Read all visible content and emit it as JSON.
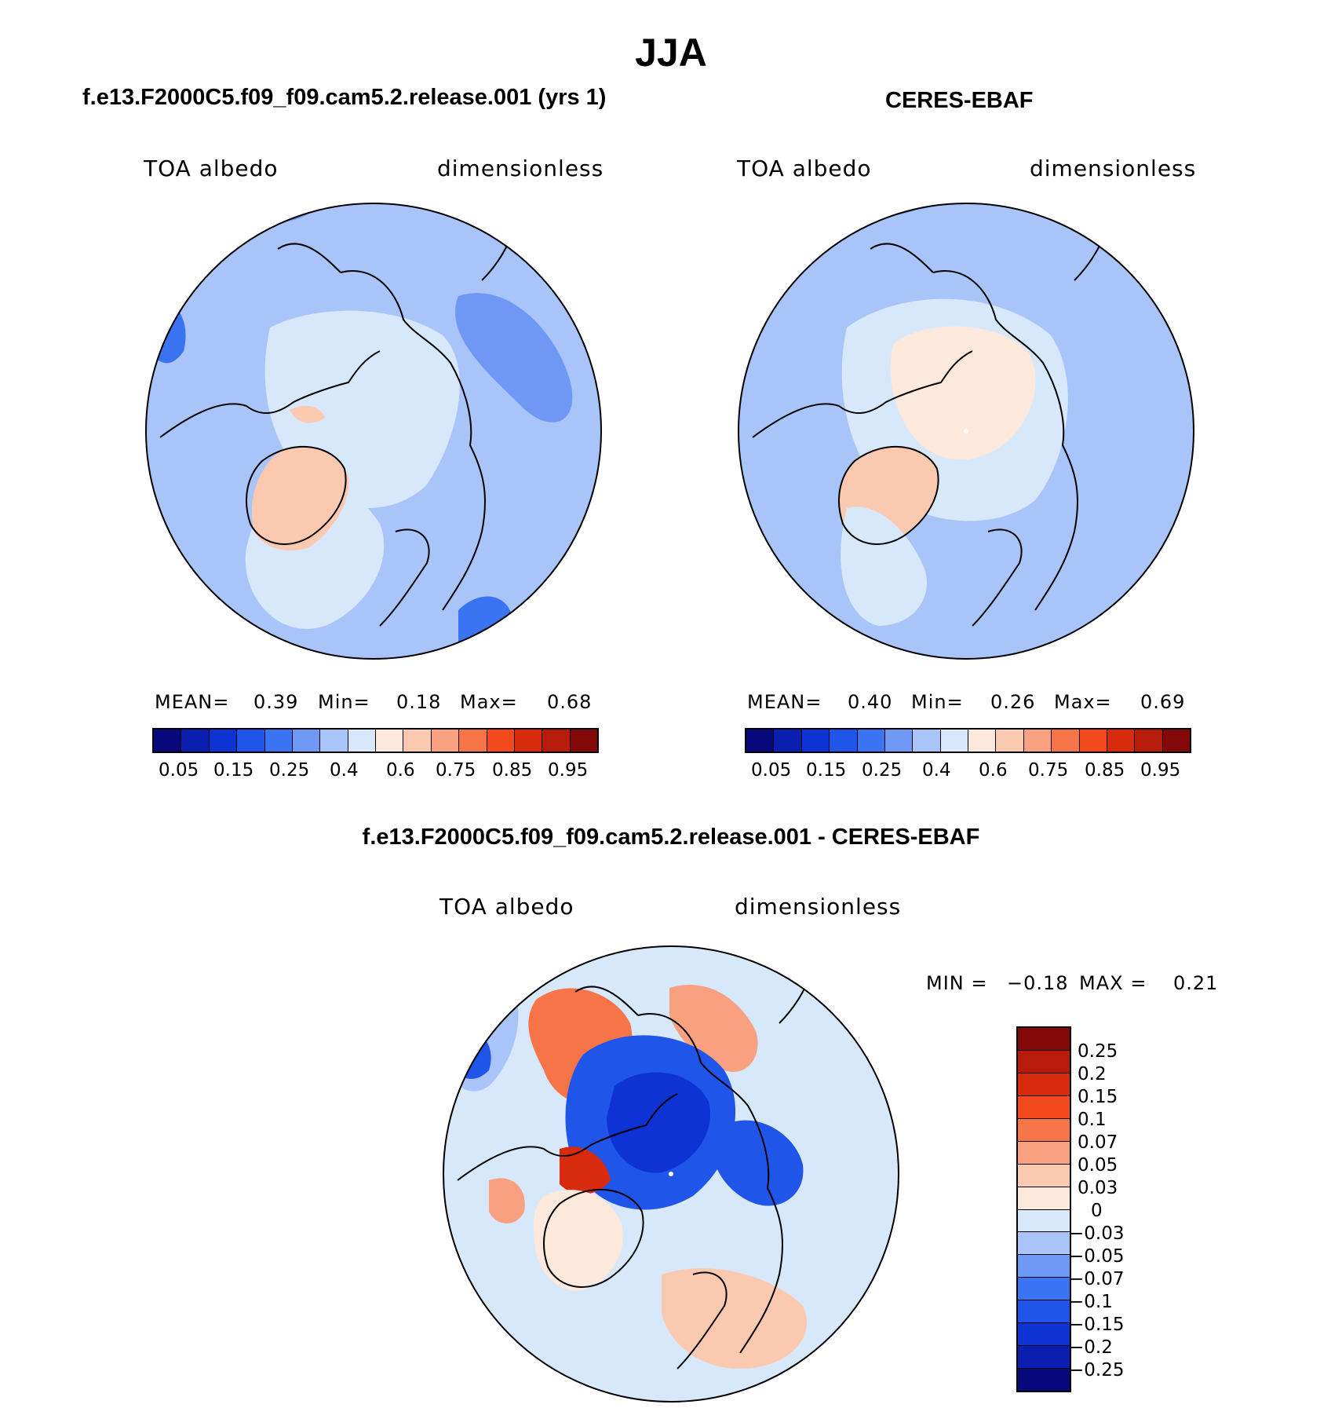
{
  "title": "JJA",
  "colors": {
    "abs_scale": [
      "#08087d",
      "#0a1fb0",
      "#0d33d4",
      "#1f55e8",
      "#3a74f2",
      "#6f98f4",
      "#a8c4f8",
      "#d8e8fb",
      "#fde9dc",
      "#fbc9b0",
      "#f8a07f",
      "#f67447",
      "#f24a1d",
      "#d82a0d",
      "#b71c0b",
      "#830808"
    ],
    "diff_scale": [
      "#830808",
      "#b71c0b",
      "#d82a0d",
      "#f24a1d",
      "#f67447",
      "#f8a07f",
      "#fbc9b0",
      "#fde9dc",
      "#d8e8fb",
      "#a8c4f8",
      "#6f98f4",
      "#3a74f2",
      "#1f55e8",
      "#0d33d4",
      "#0a1fb0",
      "#08087d"
    ]
  },
  "panels": [
    {
      "title": "f.e13.F2000C5.f09_f09.cam5.2.release.001 (yrs 1)",
      "variable": "TOA albedo",
      "units": "dimensionless",
      "stats": {
        "mean_label": "MEAN=",
        "mean": "0.39",
        "min_label": "Min=",
        "min": "0.18",
        "max_label": "Max=",
        "max": "0.68"
      },
      "ticks": [
        "0.05",
        "0.15",
        "0.25",
        "0.4",
        "0.6",
        "0.75",
        "0.85",
        "0.95"
      ]
    },
    {
      "title": "CERES-EBAF",
      "variable": "TOA albedo",
      "units": "dimensionless",
      "stats": {
        "mean_label": "MEAN=",
        "mean": "0.40",
        "min_label": "Min=",
        "min": "0.26",
        "max_label": "Max=",
        "max": "0.69"
      },
      "ticks": [
        "0.05",
        "0.15",
        "0.25",
        "0.4",
        "0.6",
        "0.75",
        "0.85",
        "0.95"
      ]
    }
  ],
  "diff": {
    "title": "f.e13.F2000C5.f09_f09.cam5.2.release.001 - CERES-EBAF",
    "variable": "TOA albedo",
    "units": "dimensionless",
    "min_label": "MIN =",
    "min": "−0.18",
    "max_label": "MAX =",
    "max": "0.21",
    "ticks": [
      "0.25",
      "0.2",
      "0.15",
      "0.1",
      "0.07",
      "0.05",
      "0.03",
      "0",
      "−0.03",
      "−0.05",
      "−0.07",
      "−0.1",
      "−0.15",
      "−0.2",
      "−0.25"
    ]
  }
}
